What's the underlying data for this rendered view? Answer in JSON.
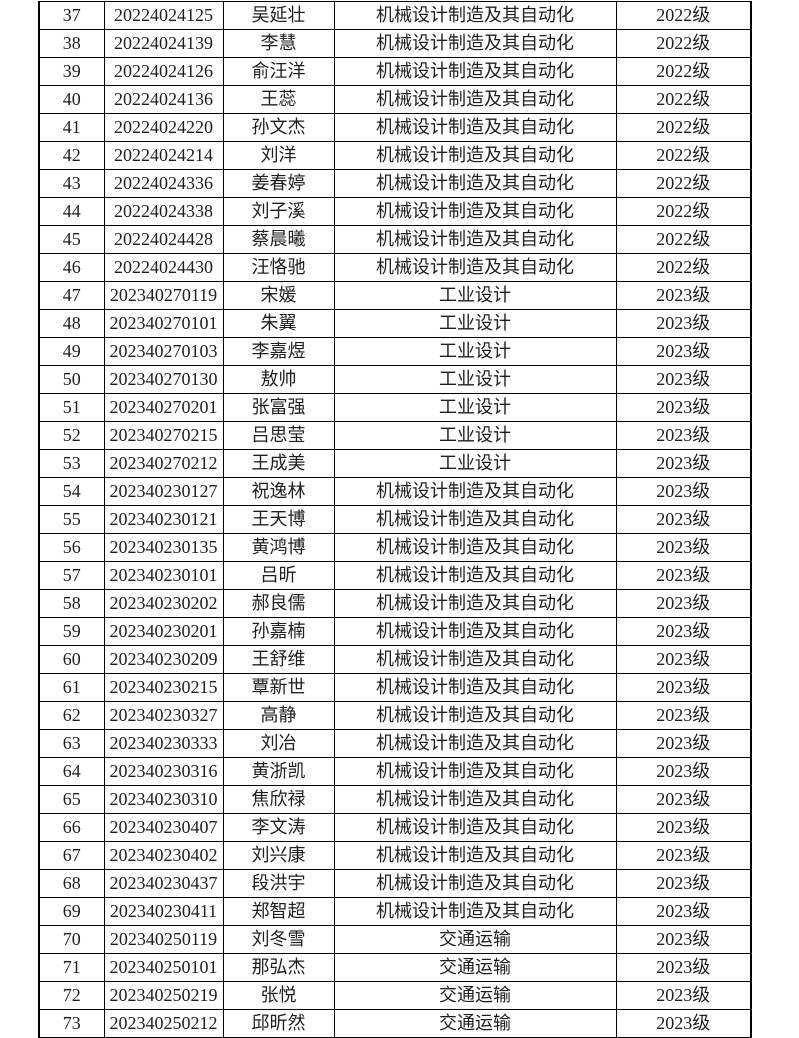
{
  "document": {
    "background": "#ffffff",
    "text_color": "#1f1f1f",
    "border_color": "#000000",
    "grades_present": [
      "2022级",
      "2023级"
    ],
    "majors_present": [
      "机械设计制造及其自动化",
      "工业设计",
      "交通运输"
    ]
  },
  "table": {
    "fields": [
      "no",
      "student_id",
      "name",
      "major",
      "grade"
    ],
    "rows": [
      {
        "no": "37",
        "student_id": "20224024125",
        "name": "吴延壮",
        "major": "机械设计制造及其自动化",
        "grade": "2022级"
      },
      {
        "no": "38",
        "student_id": "20224024139",
        "name": "李慧",
        "major": "机械设计制造及其自动化",
        "grade": "2022级"
      },
      {
        "no": "39",
        "student_id": "20224024126",
        "name": "俞汪洋",
        "major": "机械设计制造及其自动化",
        "grade": "2022级"
      },
      {
        "no": "40",
        "student_id": "20224024136",
        "name": "王蕊",
        "major": "机械设计制造及其自动化",
        "grade": "2022级"
      },
      {
        "no": "41",
        "student_id": "20224024220",
        "name": "孙文杰",
        "major": "机械设计制造及其自动化",
        "grade": "2022级"
      },
      {
        "no": "42",
        "student_id": "20224024214",
        "name": "刘洋",
        "major": "机械设计制造及其自动化",
        "grade": "2022级"
      },
      {
        "no": "43",
        "student_id": "20224024336",
        "name": "姜春婷",
        "major": "机械设计制造及其自动化",
        "grade": "2022级"
      },
      {
        "no": "44",
        "student_id": "20224024338",
        "name": "刘子溪",
        "major": "机械设计制造及其自动化",
        "grade": "2022级"
      },
      {
        "no": "45",
        "student_id": "20224024428",
        "name": "蔡晨曦",
        "major": "机械设计制造及其自动化",
        "grade": "2022级"
      },
      {
        "no": "46",
        "student_id": "20224024430",
        "name": "汪恪驰",
        "major": "机械设计制造及其自动化",
        "grade": "2022级"
      },
      {
        "no": "47",
        "student_id": "202340270119",
        "name": "宋媛",
        "major": "工业设计",
        "grade": "2023级"
      },
      {
        "no": "48",
        "student_id": "202340270101",
        "name": "朱翼",
        "major": "工业设计",
        "grade": "2023级"
      },
      {
        "no": "49",
        "student_id": "202340270103",
        "name": "李嘉煜",
        "major": "工业设计",
        "grade": "2023级"
      },
      {
        "no": "50",
        "student_id": "202340270130",
        "name": "敖帅",
        "major": "工业设计",
        "grade": "2023级"
      },
      {
        "no": "51",
        "student_id": "202340270201",
        "name": "张富强",
        "major": "工业设计",
        "grade": "2023级"
      },
      {
        "no": "52",
        "student_id": "202340270215",
        "name": "吕思莹",
        "major": "工业设计",
        "grade": "2023级"
      },
      {
        "no": "53",
        "student_id": "202340270212",
        "name": "王成美",
        "major": "工业设计",
        "grade": "2023级"
      },
      {
        "no": "54",
        "student_id": "202340230127",
        "name": "祝逸林",
        "major": "机械设计制造及其自动化",
        "grade": "2023级"
      },
      {
        "no": "55",
        "student_id": "202340230121",
        "name": "王天博",
        "major": "机械设计制造及其自动化",
        "grade": "2023级"
      },
      {
        "no": "56",
        "student_id": "202340230135",
        "name": "黄鸿博",
        "major": "机械设计制造及其自动化",
        "grade": "2023级"
      },
      {
        "no": "57",
        "student_id": "202340230101",
        "name": "吕昕",
        "major": "机械设计制造及其自动化",
        "grade": "2023级"
      },
      {
        "no": "58",
        "student_id": "202340230202",
        "name": "郝良儒",
        "major": "机械设计制造及其自动化",
        "grade": "2023级"
      },
      {
        "no": "59",
        "student_id": "202340230201",
        "name": "孙嘉楠",
        "major": "机械设计制造及其自动化",
        "grade": "2023级"
      },
      {
        "no": "60",
        "student_id": "202340230209",
        "name": "王舒维",
        "major": "机械设计制造及其自动化",
        "grade": "2023级"
      },
      {
        "no": "61",
        "student_id": "202340230215",
        "name": "覃新世",
        "major": "机械设计制造及其自动化",
        "grade": "2023级"
      },
      {
        "no": "62",
        "student_id": "202340230327",
        "name": "高静",
        "major": "机械设计制造及其自动化",
        "grade": "2023级"
      },
      {
        "no": "63",
        "student_id": "202340230333",
        "name": "刘冶",
        "major": "机械设计制造及其自动化",
        "grade": "2023级"
      },
      {
        "no": "64",
        "student_id": "202340230316",
        "name": "黄浙凯",
        "major": "机械设计制造及其自动化",
        "grade": "2023级"
      },
      {
        "no": "65",
        "student_id": "202340230310",
        "name": "焦欣禄",
        "major": "机械设计制造及其自动化",
        "grade": "2023级"
      },
      {
        "no": "66",
        "student_id": "202340230407",
        "name": "李文涛",
        "major": "机械设计制造及其自动化",
        "grade": "2023级"
      },
      {
        "no": "67",
        "student_id": "202340230402",
        "name": "刘兴康",
        "major": "机械设计制造及其自动化",
        "grade": "2023级"
      },
      {
        "no": "68",
        "student_id": "202340230437",
        "name": "段洪宇",
        "major": "机械设计制造及其自动化",
        "grade": "2023级"
      },
      {
        "no": "69",
        "student_id": "202340230411",
        "name": "郑智超",
        "major": "机械设计制造及其自动化",
        "grade": "2023级"
      },
      {
        "no": "70",
        "student_id": "202340250119",
        "name": "刘冬雪",
        "major": "交通运输",
        "grade": "2023级"
      },
      {
        "no": "71",
        "student_id": "202340250101",
        "name": "那弘杰",
        "major": "交通运输",
        "grade": "2023级"
      },
      {
        "no": "72",
        "student_id": "202340250219",
        "name": "张悦",
        "major": "交通运输",
        "grade": "2023级"
      },
      {
        "no": "73",
        "student_id": "202340250212",
        "name": "邱昕然",
        "major": "交通运输",
        "grade": "2023级"
      }
    ]
  }
}
